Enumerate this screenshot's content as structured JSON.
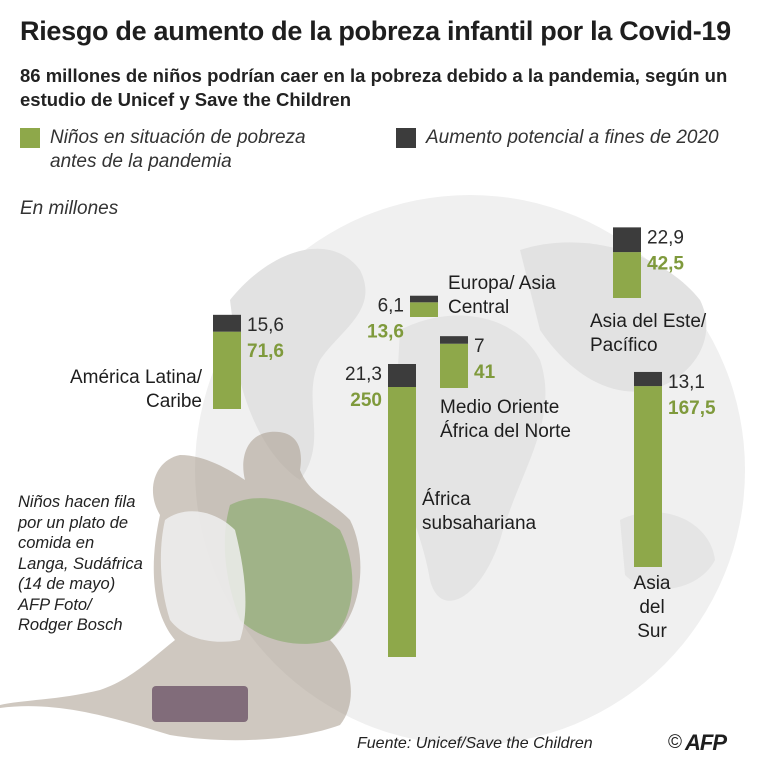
{
  "title": "Riesgo de aumento de la pobreza infantil por la Covid-19",
  "subtitle": "86 millones de niños podrían caer en la pobreza debido a la pandemia, según un estudio de Unicef y Save the Children",
  "legend": [
    {
      "label": "Niños en situación de pobreza antes de la pandemia",
      "color": "#8ea84a"
    },
    {
      "label": "Aumento potencial a fines de 2020",
      "color": "#3c3c3c"
    }
  ],
  "unit_label": "En millones",
  "caption": "Niños hacen fila por un plato de comida en Langa, Sudáfrica (14 de mayo) AFP Foto/ Rodger Bosch",
  "source": "Fuente: Unicef/Save the Children",
  "logo": {
    "copyright": "©",
    "brand": "AFP"
  },
  "colors": {
    "before": "#8ea84a",
    "increase": "#3c3c3c",
    "before_text": "#7f9a3c",
    "increase_text": "#2a2a2a"
  },
  "chart_data": {
    "type": "bar",
    "stacked": true,
    "title": "Riesgo de aumento de la pobreza infantil por la Covid-19",
    "ylabel": "En millones",
    "categories": [
      "América Latina/ Caribe",
      "Europa/ Asia Central",
      "África subsahariana",
      "Medio Oriente África del Norte",
      "Asia del Este/ Pacífico",
      "Asia del Sur"
    ],
    "series": [
      {
        "name": "Niños en situación de pobreza antes de la pandemia",
        "values": [
          71.6,
          13.6,
          250,
          41,
          42.5,
          167.5
        ],
        "labels": [
          "71,6",
          "13,6",
          "250",
          "41",
          "42,5",
          "167,5"
        ]
      },
      {
        "name": "Aumento potencial a fines de 2020",
        "values": [
          15.6,
          6.1,
          21.3,
          7,
          22.9,
          13.1
        ],
        "labels": [
          "15,6",
          "6,1",
          "21,3",
          "7",
          "22,9",
          "13,1"
        ]
      }
    ]
  }
}
